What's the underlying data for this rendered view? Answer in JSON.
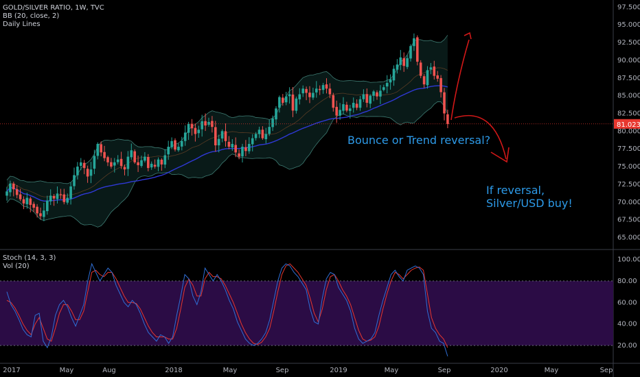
{
  "legend": {
    "symbol": "GOLD/SILVER RATIO, 1W, TVC",
    "bb": "BB (20, close, 2)",
    "lines": "Daily Lines",
    "stoch": "Stoch (14, 3, 3)",
    "vol": "Vol (20)"
  },
  "annotations": {
    "bounce": "Bounce or Trend reversal?",
    "reversal_1": "If reversal,",
    "reversal_2": "Silver/USD buy!"
  },
  "colors": {
    "background": "#000000",
    "up": "#26a69a",
    "down": "#ef5350",
    "basis": "#2f39d6",
    "band": "#1b4a45",
    "price_label": "#e8372f",
    "stoch_k": "#2f6fd6",
    "stoch_d": "#e8372f",
    "stoch_fill": "#2b0c45",
    "annotation_text": "#2d9ae8",
    "annotation_arrow": "#d21818"
  },
  "chart_data": [
    {
      "type": "candlestick",
      "panel": "price",
      "x_tick_labels": [
        "2017",
        "May",
        "Aug",
        "2018",
        "May",
        "Sep",
        "2019",
        "May",
        "Sep",
        "2020",
        "May",
        "Sep"
      ],
      "y_ticks": [
        "65.000",
        "67.500",
        "70.000",
        "72.500",
        "75.000",
        "77.500",
        "80.000",
        "82.500",
        "85.000",
        "87.500",
        "90.000",
        "92.500",
        "95.000",
        "97.500"
      ],
      "ylim": [
        63.5,
        98.5
      ],
      "last_price": "81.023",
      "closes": [
        71.5,
        72.6,
        71.8,
        71.0,
        70.4,
        69.8,
        70.6,
        69.6,
        69.2,
        68.4,
        68.0,
        68.8,
        70.2,
        70.9,
        70.5,
        71.2,
        71.0,
        70.0,
        70.6,
        72.2,
        73.8,
        75.0,
        75.6,
        74.8,
        73.6,
        74.6,
        76.5,
        78.2,
        77.0,
        76.2,
        75.6,
        75.0,
        75.6,
        76.0,
        75.1,
        74.6,
        76.4,
        77.3,
        75.6,
        75.2,
        75.9,
        76.4,
        74.8,
        75.4,
        75.0,
        76.0,
        75.3,
        76.6,
        77.8,
        78.6,
        77.4,
        77.8,
        78.6,
        79.8,
        81.0,
        80.4,
        79.6,
        80.2,
        81.4,
        80.8,
        81.3,
        80.6,
        78.0,
        78.9,
        80.0,
        78.6,
        77.8,
        78.2,
        77.0,
        76.4,
        77.8,
        77.2,
        78.2,
        79.0,
        79.6,
        80.2,
        79.0,
        79.6,
        80.6,
        81.8,
        83.2,
        84.8,
        84.0,
        84.9,
        85.2,
        82.9,
        84.6,
        85.2,
        86.0,
        85.4,
        84.8,
        85.4,
        86.0,
        85.8,
        86.5,
        86.0,
        85.2,
        83.3,
        82.2,
        83.0,
        83.8,
        82.9,
        83.2,
        84.0,
        83.3,
        84.5,
        85.2,
        84.0,
        85.0,
        85.6,
        84.9,
        85.7,
        86.2,
        86.8,
        87.3,
        88.8,
        89.4,
        90.4,
        89.2,
        90.3,
        92.0,
        93.1,
        89.8,
        87.8,
        86.6,
        88.6,
        89.0,
        87.8,
        87.4,
        85.5,
        82.5,
        81.0
      ],
      "bollinger": {
        "length": 20,
        "source": "close",
        "stddev": 2
      }
    },
    {
      "type": "line",
      "panel": "oscillator",
      "y_ticks": [
        "20.00",
        "40.00",
        "60.00",
        "80.00",
        "100.00"
      ],
      "ylim": [
        6,
        108
      ],
      "band": [
        20,
        80
      ],
      "series": [
        {
          "key": "k",
          "values": [
            70,
            58,
            52,
            44,
            35,
            30,
            28,
            48,
            50,
            24,
            18,
            28,
            48,
            58,
            62,
            56,
            46,
            38,
            48,
            58,
            80,
            96,
            88,
            80,
            86,
            92,
            88,
            76,
            68,
            60,
            56,
            62,
            58,
            50,
            40,
            32,
            28,
            24,
            30,
            28,
            22,
            28,
            48,
            66,
            86,
            82,
            66,
            58,
            70,
            92,
            86,
            80,
            86,
            80,
            72,
            62,
            54,
            42,
            34,
            26,
            22,
            20,
            22,
            26,
            32,
            44,
            62,
            80,
            92,
            96,
            94,
            88,
            84,
            78,
            72,
            54,
            42,
            40,
            64,
            82,
            88,
            86,
            74,
            68,
            62,
            52,
            36,
            26,
            22,
            24,
            26,
            32,
            48,
            62,
            74,
            86,
            90,
            84,
            80,
            90,
            92,
            94,
            92,
            86,
            52,
            36,
            32,
            24,
            22,
            10
          ]
        },
        {
          "key": "d",
          "values": [
            62,
            60,
            55,
            48,
            40,
            34,
            30,
            40,
            46,
            36,
            26,
            24,
            36,
            50,
            58,
            58,
            52,
            44,
            44,
            52,
            70,
            88,
            90,
            86,
            84,
            88,
            88,
            82,
            74,
            66,
            60,
            60,
            59,
            54,
            46,
            38,
            32,
            28,
            28,
            28,
            26,
            26,
            36,
            54,
            74,
            82,
            76,
            66,
            66,
            82,
            88,
            84,
            84,
            82,
            76,
            68,
            60,
            50,
            40,
            32,
            26,
            22,
            21,
            23,
            28,
            36,
            52,
            70,
            86,
            94,
            96,
            92,
            88,
            82,
            76,
            64,
            50,
            42,
            54,
            72,
            84,
            86,
            80,
            72,
            66,
            58,
            46,
            34,
            26,
            24,
            25,
            28,
            38,
            54,
            68,
            80,
            88,
            86,
            82,
            86,
            90,
            92,
            93,
            90,
            68,
            46,
            36,
            30,
            26,
            18
          ]
        }
      ]
    }
  ]
}
